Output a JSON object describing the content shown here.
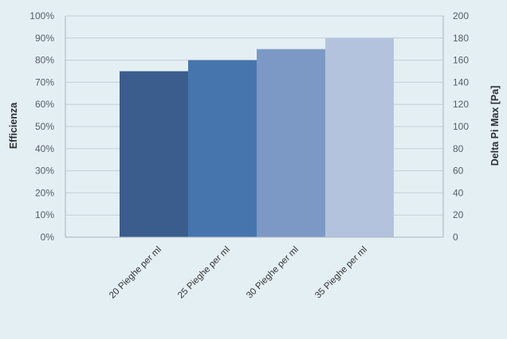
{
  "chart_data": {
    "type": "bar",
    "categories": [
      "20 Pieghe per ml",
      "25 Pieghe per ml",
      "30 Pieghe per ml",
      "35 Pieghe per ml"
    ],
    "values": [
      0.75,
      0.8,
      0.85,
      0.9
    ],
    "ylabel": "Efficienza",
    "y2label": "Delta Pi Max  [Pa]",
    "ylim": [
      0,
      1
    ],
    "y2lim": [
      0,
      200
    ],
    "yticks": [
      "0%",
      "10%",
      "20%",
      "30%",
      "40%",
      "50%",
      "60%",
      "70%",
      "80%",
      "90%",
      "100%"
    ],
    "y2ticks": [
      "0",
      "20",
      "40",
      "60",
      "80",
      "100",
      "120",
      "140",
      "160",
      "180",
      "200"
    ],
    "grid": true,
    "colors": [
      "#3b5d8e",
      "#4675ad",
      "#7c99c6",
      "#b3c3de"
    ],
    "background": "#e4eff4",
    "gridColor": "#c4cdd4"
  }
}
